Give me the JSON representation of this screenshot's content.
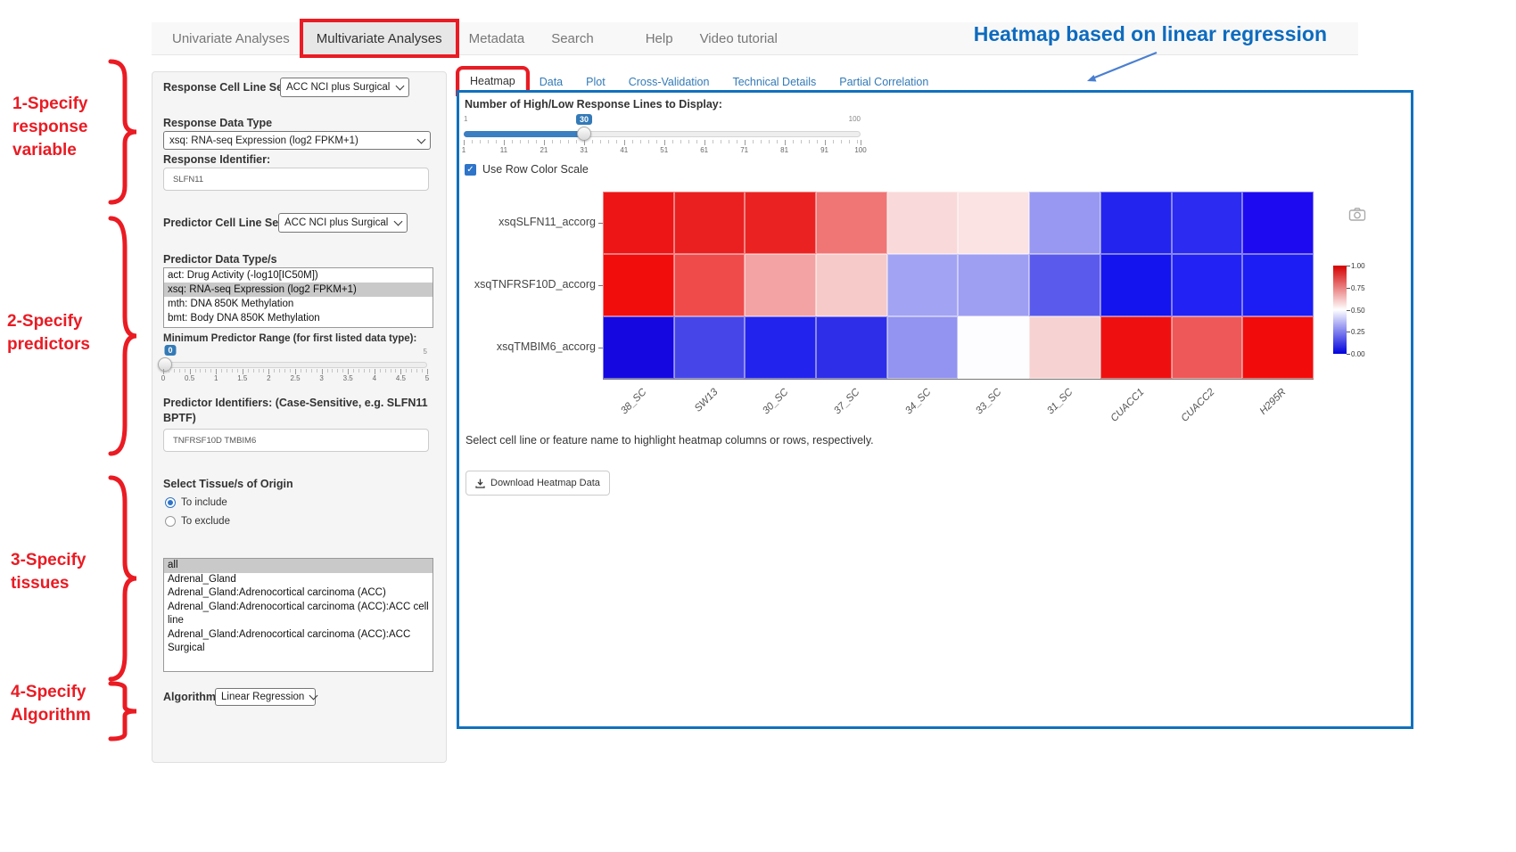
{
  "annotations": {
    "heading": "Heatmap based on linear regression",
    "heading_color": "#0d6bbf",
    "accent_red": "#ea1b23",
    "steps": [
      {
        "label": "1-Specify response variable"
      },
      {
        "label": "2-Specify predictors"
      },
      {
        "label": "3-Specify tissues"
      },
      {
        "label": "4-Specify Algorithm"
      }
    ]
  },
  "nav": {
    "items": [
      {
        "label": "Univariate Analyses",
        "active": false,
        "red_box": false,
        "gap_before": false
      },
      {
        "label": "Multivariate Analyses",
        "active": true,
        "red_box": true,
        "gap_before": false
      },
      {
        "label": "Metadata",
        "active": false,
        "red_box": false,
        "gap_before": false
      },
      {
        "label": "Search",
        "active": false,
        "red_box": false,
        "gap_before": false
      },
      {
        "label": "Help",
        "active": false,
        "red_box": false,
        "gap_before": true
      },
      {
        "label": "Video tutorial",
        "active": false,
        "red_box": false,
        "gap_before": false
      }
    ]
  },
  "sidebar": {
    "response_cell_line_set": {
      "label": "Response Cell Line Set",
      "value": "ACC NCI plus Surgical"
    },
    "response_data_type": {
      "label": "Response Data Type",
      "value": "xsq: RNA-seq Expression (log2 FPKM+1)"
    },
    "response_identifier": {
      "label": "Response Identifier:",
      "value": "SLFN11"
    },
    "predictor_cell_line_set": {
      "label": "Predictor Cell Line Set",
      "value": "ACC NCI plus Surgical"
    },
    "predictor_data_type": {
      "label": "Predictor Data Type/s",
      "options": [
        {
          "label": "act: Drug Activity (-log10[IC50M])",
          "selected": false
        },
        {
          "label": "xsq: RNA-seq Expression (log2 FPKM+1)",
          "selected": true
        },
        {
          "label": "mth: DNA 850K Methylation",
          "selected": false
        },
        {
          "label": "bmt: Body DNA 850K Methylation",
          "selected": false
        }
      ]
    },
    "range_slider": {
      "label": "Minimum Predictor Range (for first listed data type):",
      "value": "0",
      "max_label": "5",
      "ticks": [
        "0",
        "0.5",
        "1",
        "1.5",
        "2",
        "2.5",
        "3",
        "3.5",
        "4",
        "4.5",
        "5"
      ]
    },
    "predictor_identifiers": {
      "label": "Predictor Identifiers: (Case-Sensitive, e.g. SLFN11 BPTF)",
      "value": "TNFRSF10D TMBIM6"
    },
    "tissue": {
      "label": "Select Tissue/s of Origin",
      "radios": [
        {
          "label": "To include",
          "selected": true
        },
        {
          "label": "To exclude",
          "selected": false
        }
      ],
      "options": [
        {
          "label": "all",
          "selected": true
        },
        {
          "label": "Adrenal_Gland",
          "selected": false
        },
        {
          "label": "Adrenal_Gland:Adrenocortical carcinoma (ACC)",
          "selected": false
        },
        {
          "label": "Adrenal_Gland:Adrenocortical carcinoma (ACC):ACC cell line",
          "selected": false
        },
        {
          "label": "Adrenal_Gland:Adrenocortical carcinoma (ACC):ACC Surgical",
          "selected": false
        }
      ]
    },
    "algorithm": {
      "label": "Algorithm",
      "value": "Linear Regression"
    }
  },
  "main": {
    "tabs": [
      {
        "label": "Heatmap",
        "active": true,
        "red_box": true
      },
      {
        "label": "Data",
        "active": false,
        "red_box": false
      },
      {
        "label": "Plot",
        "active": false,
        "red_box": false
      },
      {
        "label": "Cross-Validation",
        "active": false,
        "red_box": false
      },
      {
        "label": "Technical Details",
        "active": false,
        "red_box": false
      },
      {
        "label": "Partial Correlation",
        "active": false,
        "red_box": false
      }
    ],
    "panel_border_color": "#1171bd",
    "lines_slider": {
      "label": "Number of High/Low Response Lines to Display:",
      "value": "30",
      "min_label": "1",
      "max_label": "100",
      "ticks": [
        "1",
        "11",
        "21",
        "31",
        "41",
        "51",
        "61",
        "71",
        "81",
        "91",
        "100"
      ]
    },
    "row_color_checkbox": {
      "label": "Use Row Color Scale",
      "checked": true
    },
    "hint": "Select cell line or feature name to highlight heatmap columns or rows, respectively.",
    "download_button": "Download Heatmap Data"
  },
  "chart_data": {
    "type": "heatmap",
    "rows": [
      "xsqSLFN11_accorg",
      "xsqTNFRSF10D_accorg",
      "xsqTMBIM6_accorg"
    ],
    "columns": [
      "38_SC",
      "SW13",
      "30_SC",
      "37_SC",
      "34_SC",
      "33_SC",
      "31_SC",
      "CUACC1",
      "CUACC2",
      "H295R"
    ],
    "values": [
      [
        1.0,
        0.95,
        0.93,
        0.78,
        0.58,
        0.56,
        0.32,
        0.05,
        0.07,
        0.03
      ],
      [
        1.0,
        0.85,
        0.7,
        0.62,
        0.33,
        0.32,
        0.22,
        0.02,
        0.05,
        0.04
      ],
      [
        0.03,
        0.15,
        0.08,
        0.1,
        0.31,
        0.5,
        0.6,
        0.97,
        0.8,
        0.98
      ]
    ],
    "cell_colors": [
      [
        "#ed1515",
        "#ea2020",
        "#eb2222",
        "#f07575",
        "#f9d9d9",
        "#fbe3e3",
        "#9898f2",
        "#2424ef",
        "#2b2bf2",
        "#1d0af0"
      ],
      [
        "#f20d0d",
        "#ef4b4b",
        "#f3a3a3",
        "#f7caca",
        "#a3a3f3",
        "#9e9ef3",
        "#5a5aec",
        "#1414ee",
        "#2222f4",
        "#1c1cf4"
      ],
      [
        "#1507e0",
        "#4646e8",
        "#2323ee",
        "#2e2ee9",
        "#9393f1",
        "#fdfdff",
        "#f7d2d2",
        "#ee1010",
        "#ef5858",
        "#f20b0b"
      ]
    ],
    "colorscale": "blue-white-red (0 = blue, 1 = red, row-scaled)",
    "colorbar": {
      "tick_labels": [
        "1.00",
        "0.75",
        "0.50",
        "0.25",
        "0.00"
      ],
      "gradient": [
        "#d40000",
        "#ffffff",
        "#0000dd"
      ]
    },
    "legend_position": "right",
    "x_tick_angle": -45
  }
}
